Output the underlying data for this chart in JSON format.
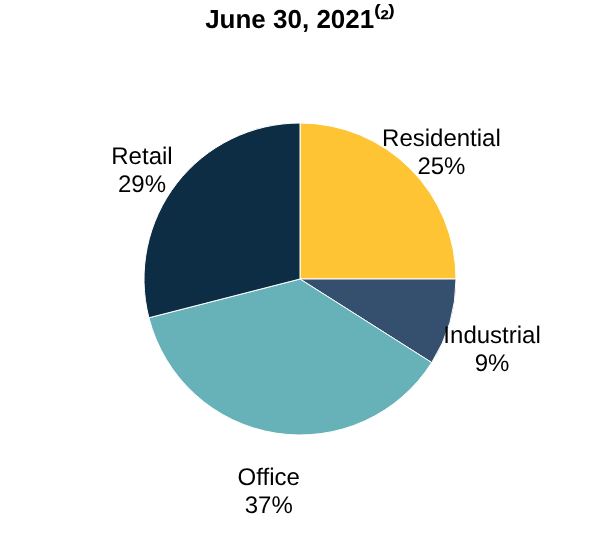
{
  "chart_data": {
    "type": "pie",
    "title": "June 30, 2021⁽²⁾",
    "categories": [
      "Residential",
      "Industrial",
      "Office",
      "Retail"
    ],
    "values": [
      25,
      9,
      37,
      29
    ],
    "value_labels": [
      "25%",
      "9%",
      "37%",
      "29%"
    ],
    "colors": [
      "#ffc433",
      "#34506e",
      "#66b2b8",
      "#0d2d45"
    ],
    "legend": false
  }
}
